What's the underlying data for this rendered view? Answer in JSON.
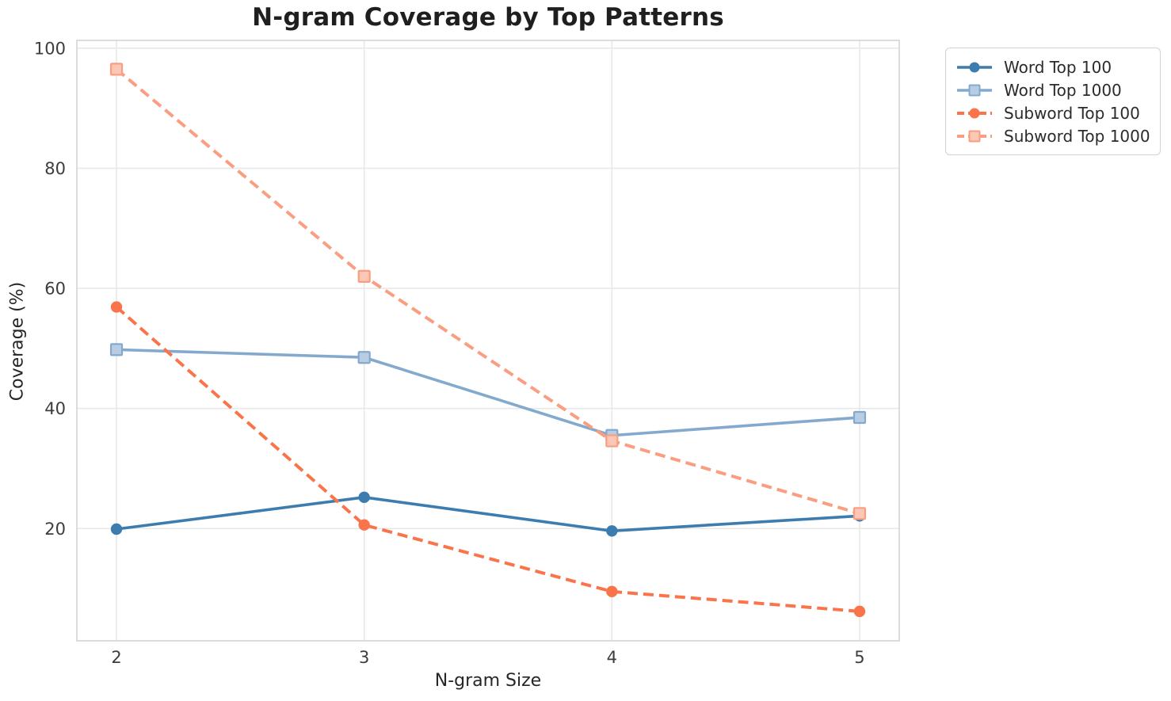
{
  "chart_data": {
    "type": "line",
    "title": "N-gram Coverage by Top Patterns",
    "xlabel": "N-gram Size",
    "ylabel": "Coverage (%)",
    "x": [
      2,
      3,
      4,
      5
    ],
    "xticks": [
      2,
      3,
      4,
      5
    ],
    "yticks": [
      20,
      40,
      60,
      80,
      100
    ],
    "xlim": [
      1.84,
      5.16
    ],
    "ylim": [
      1.3,
      101.3
    ],
    "grid": true,
    "legend_position": "upper right, outside axes",
    "series": [
      {
        "name": "Word Top 100",
        "values": [
          19.9,
          25.2,
          19.6,
          22.1
        ],
        "color": "#3D7CAF",
        "line": "solid",
        "marker": "circle"
      },
      {
        "name": "Word Top 1000",
        "values": [
          49.8,
          48.5,
          35.5,
          38.5
        ],
        "color": "#84A9CE",
        "line": "solid",
        "marker": "square"
      },
      {
        "name": "Subword Top 100",
        "values": [
          56.9,
          20.6,
          9.5,
          6.2
        ],
        "color": "#F9744A",
        "line": "dashed",
        "marker": "circle"
      },
      {
        "name": "Subword Top 1000",
        "values": [
          96.5,
          62.0,
          34.6,
          22.5
        ],
        "color": "#FA9E81",
        "line": "dashed",
        "marker": "square"
      }
    ],
    "colors": {
      "background": "#FFFFFF",
      "gridline": "#E8E8E8",
      "spine": "#D3D3D3",
      "title_text": "#1F1F1F",
      "tick_text": "#3D3D3D",
      "label_text": "#262626"
    }
  }
}
